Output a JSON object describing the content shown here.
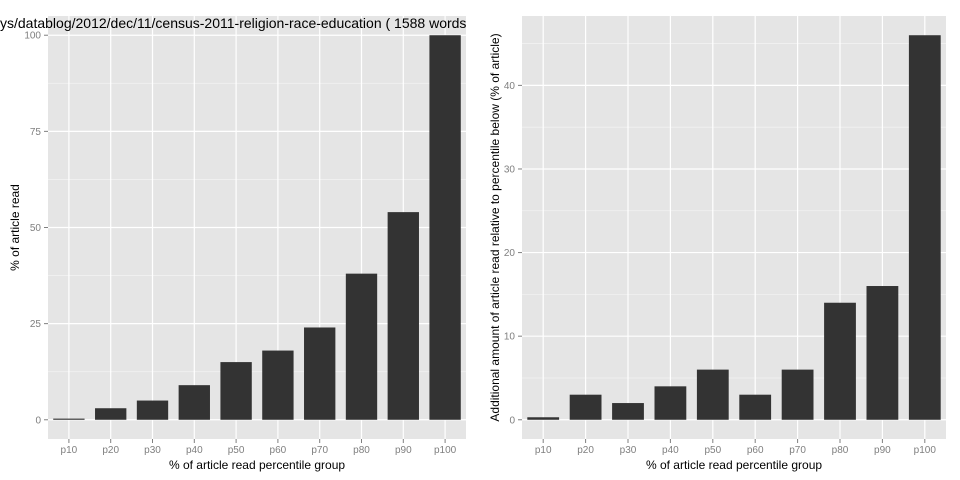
{
  "colors": {
    "panel_bg": "#e5e5e5",
    "grid_major": "#ffffff",
    "grid_minor": "#f2f2f2",
    "bar": "#333333",
    "tick_text": "#7f7f7f"
  },
  "chart_data": [
    {
      "type": "bar",
      "title": "ys/datablog/2012/dec/11/census-2011-religion-race-education ( 1588 words",
      "xlabel": "% of article read percentile group",
      "ylabel": "% of article read",
      "categories": [
        "p10",
        "p20",
        "p30",
        "p40",
        "p50",
        "p60",
        "p70",
        "p80",
        "p90",
        "p100"
      ],
      "values": [
        0.3,
        3,
        5,
        9,
        15,
        18,
        24,
        38,
        54,
        100
      ],
      "ylim": [
        -5,
        105
      ],
      "yticks": [
        0,
        25,
        50,
        75,
        100
      ],
      "grid": true
    },
    {
      "type": "bar",
      "title": "",
      "xlabel": "% of article read percentile group",
      "ylabel": "Additional amount of article read relative to percentile below (% of article)",
      "categories": [
        "p10",
        "p20",
        "p30",
        "p40",
        "p50",
        "p60",
        "p70",
        "p80",
        "p90",
        "p100"
      ],
      "values": [
        0.3,
        3,
        2,
        4,
        6,
        3,
        6,
        14,
        16,
        46
      ],
      "ylim": [
        -2.3,
        48.3
      ],
      "yticks": [
        0,
        10,
        20,
        30,
        40
      ],
      "grid": true
    }
  ]
}
